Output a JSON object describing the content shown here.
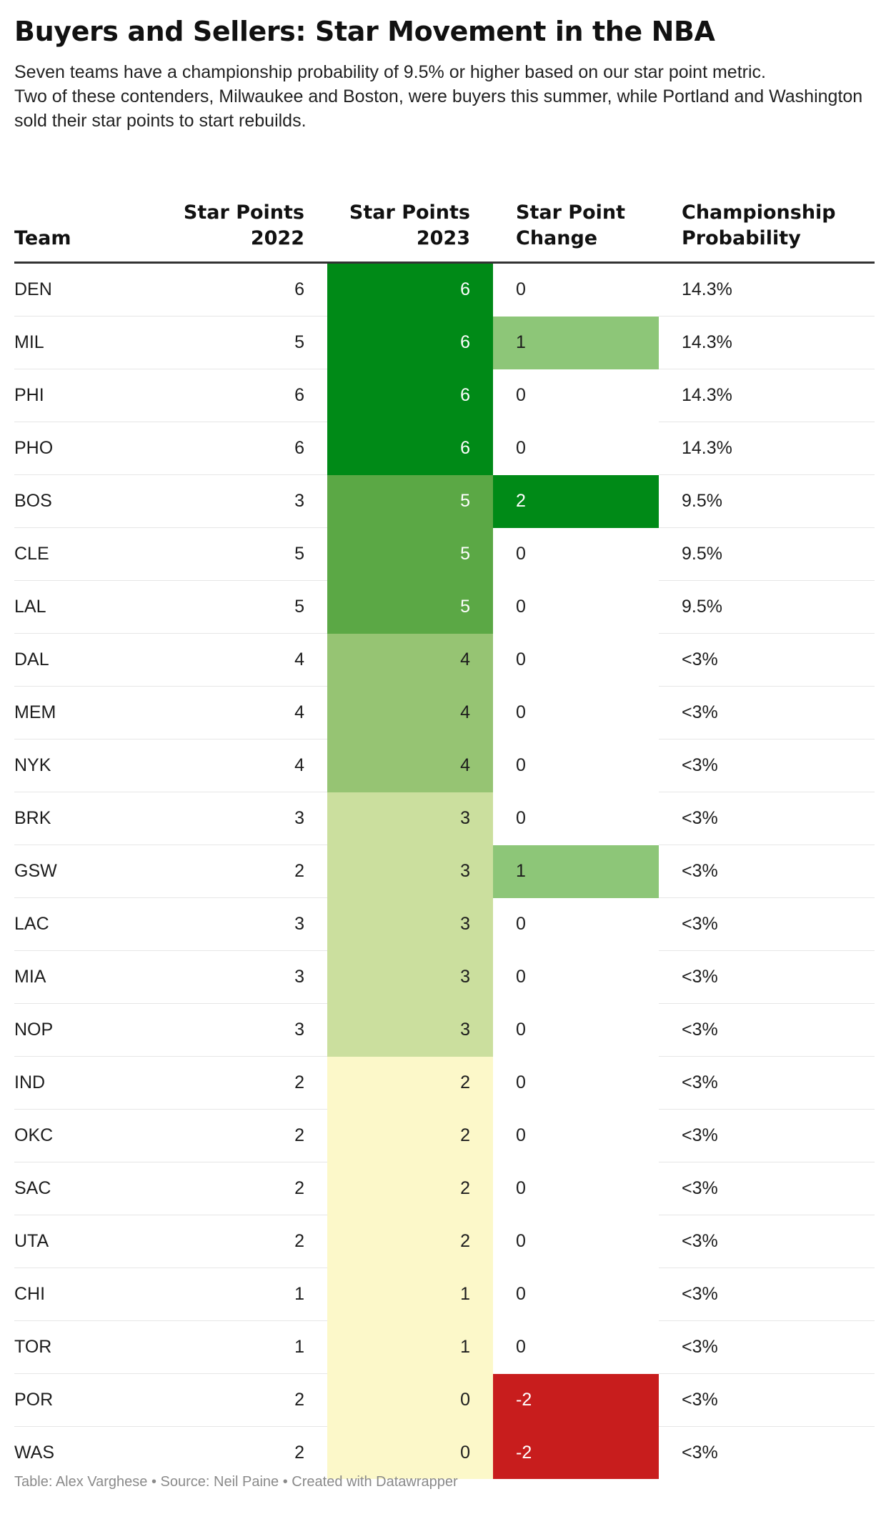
{
  "title": "Buyers and Sellers: Star Movement in the NBA",
  "description": "Seven teams have a championship probability of 9.5% or higher based on our star point metric.\n Two of these contenders, Milwaukee and Boston, were buyers this summer, while Portland and Washington sold their star points to start rebuilds.",
  "footer": "Table: Alex Varghese • Source: Neil Paine • Created with Datawrapper",
  "colors": {
    "pts_6": "#008a17",
    "pts_5": "#5ba845",
    "pts_4": "#96c473",
    "pts_3": "#cbdf9e",
    "pts_2": "#fcf8c9",
    "chg_2": "#008a17",
    "chg_1": "#8dc678",
    "chg_neg2": "#c81d1d"
  },
  "chart_data": {
    "type": "table",
    "columns": [
      "Team",
      "Star Points\n2022",
      "Star Points\n2023",
      "Star Point\nChange",
      "Championship\nProbability"
    ],
    "rows": [
      {
        "team": "DEN",
        "pts2022": 6,
        "pts2023": 6,
        "change": 0,
        "prob": "14.3%"
      },
      {
        "team": "MIL",
        "pts2022": 5,
        "pts2023": 6,
        "change": 1,
        "prob": "14.3%"
      },
      {
        "team": "PHI",
        "pts2022": 6,
        "pts2023": 6,
        "change": 0,
        "prob": "14.3%"
      },
      {
        "team": "PHO",
        "pts2022": 6,
        "pts2023": 6,
        "change": 0,
        "prob": "14.3%"
      },
      {
        "team": "BOS",
        "pts2022": 3,
        "pts2023": 5,
        "change": 2,
        "prob": "9.5%"
      },
      {
        "team": "CLE",
        "pts2022": 5,
        "pts2023": 5,
        "change": 0,
        "prob": "9.5%"
      },
      {
        "team": "LAL",
        "pts2022": 5,
        "pts2023": 5,
        "change": 0,
        "prob": "9.5%"
      },
      {
        "team": "DAL",
        "pts2022": 4,
        "pts2023": 4,
        "change": 0,
        "prob": "<3%"
      },
      {
        "team": "MEM",
        "pts2022": 4,
        "pts2023": 4,
        "change": 0,
        "prob": "<3%"
      },
      {
        "team": "NYK",
        "pts2022": 4,
        "pts2023": 4,
        "change": 0,
        "prob": "<3%"
      },
      {
        "team": "BRK",
        "pts2022": 3,
        "pts2023": 3,
        "change": 0,
        "prob": "<3%"
      },
      {
        "team": "GSW",
        "pts2022": 2,
        "pts2023": 3,
        "change": 1,
        "prob": "<3%"
      },
      {
        "team": "LAC",
        "pts2022": 3,
        "pts2023": 3,
        "change": 0,
        "prob": "<3%"
      },
      {
        "team": "MIA",
        "pts2022": 3,
        "pts2023": 3,
        "change": 0,
        "prob": "<3%"
      },
      {
        "team": "NOP",
        "pts2022": 3,
        "pts2023": 3,
        "change": 0,
        "prob": "<3%"
      },
      {
        "team": "IND",
        "pts2022": 2,
        "pts2023": 2,
        "change": 0,
        "prob": "<3%"
      },
      {
        "team": "OKC",
        "pts2022": 2,
        "pts2023": 2,
        "change": 0,
        "prob": "<3%"
      },
      {
        "team": "SAC",
        "pts2022": 2,
        "pts2023": 2,
        "change": 0,
        "prob": "<3%"
      },
      {
        "team": "UTA",
        "pts2022": 2,
        "pts2023": 2,
        "change": 0,
        "prob": "<3%"
      },
      {
        "team": "CHI",
        "pts2022": 1,
        "pts2023": 1,
        "change": 0,
        "prob": "<3%"
      },
      {
        "team": "TOR",
        "pts2022": 1,
        "pts2023": 1,
        "change": 0,
        "prob": "<3%"
      },
      {
        "team": "POR",
        "pts2022": 2,
        "pts2023": 0,
        "change": -2,
        "prob": "<3%"
      },
      {
        "team": "WAS",
        "pts2022": 2,
        "pts2023": 0,
        "change": -2,
        "prob": "<3%"
      }
    ]
  }
}
